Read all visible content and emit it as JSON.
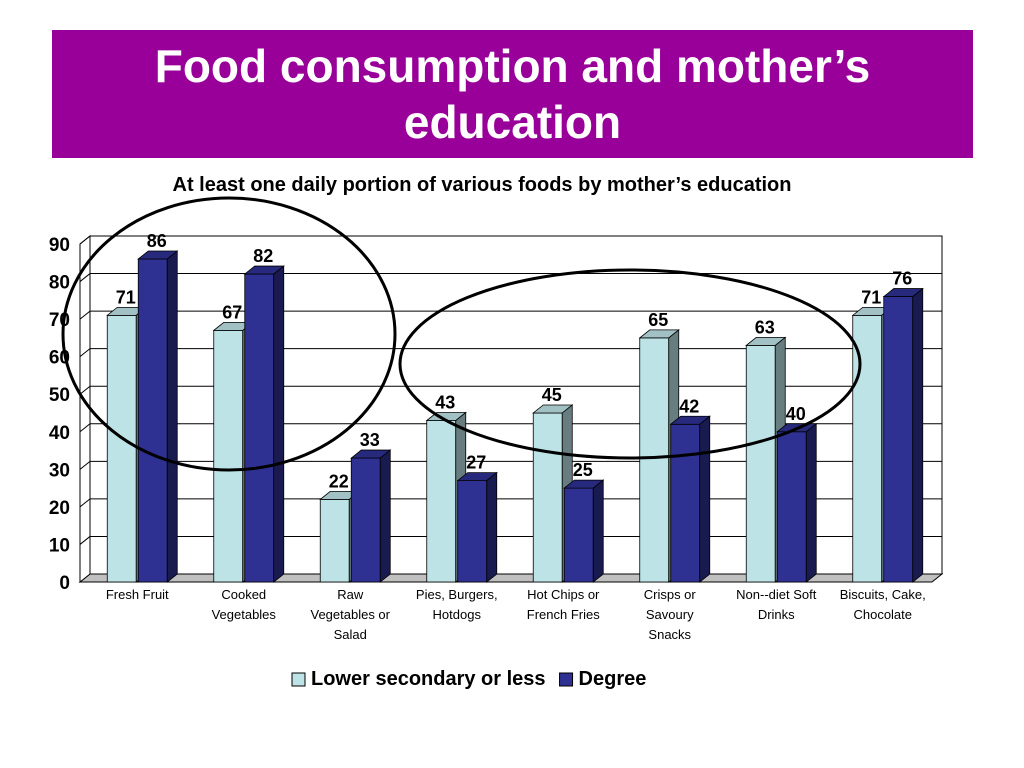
{
  "slide": {
    "title": "Food consumption and mother’s education"
  },
  "chart_data": {
    "type": "bar",
    "title": "At least one daily portion of various foods by mother’s education",
    "categories": [
      [
        "Fresh Fruit"
      ],
      [
        "Cooked",
        "Vegetables"
      ],
      [
        "Raw",
        "Vegetables or",
        "Salad"
      ],
      [
        "Pies, Burgers,",
        "Hotdogs"
      ],
      [
        "Hot Chips or",
        "French Fries"
      ],
      [
        "Crisps or",
        "Savoury",
        "Snacks"
      ],
      [
        "Non--diet Soft",
        "Drinks"
      ],
      [
        "Biscuits, Cake,",
        "Chocolate"
      ]
    ],
    "series": [
      {
        "name": "Lower secondary or less",
        "values": [
          71,
          67,
          22,
          43,
          45,
          65,
          63,
          71
        ],
        "color": "#bde3e6"
      },
      {
        "name": "Degree",
        "values": [
          86,
          82,
          33,
          27,
          25,
          42,
          40,
          76
        ],
        "color": "#2e3192"
      }
    ],
    "ylim": [
      0,
      90
    ],
    "yticks": [
      0,
      10,
      20,
      30,
      40,
      50,
      60,
      70,
      80,
      90
    ],
    "grid": true,
    "legend_position": "bottom",
    "annotations": [
      "ellipse around Fresh Fruit and Cooked Vegetables",
      "ellipse around Pies, Burgers, Hotdogs through Non--diet Soft Drinks"
    ]
  }
}
